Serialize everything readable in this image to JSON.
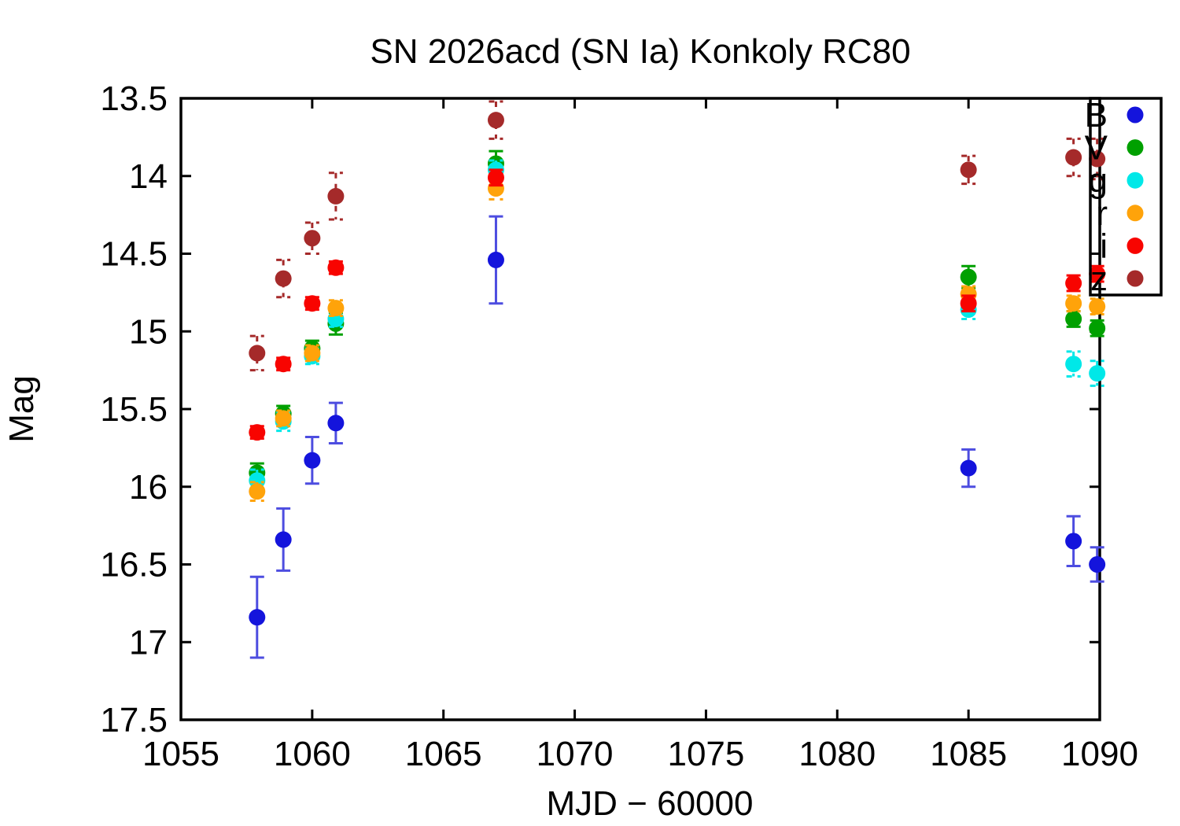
{
  "chart_data": {
    "type": "scatter",
    "title": "SN 2026acd (SN Ia) Konkoly RC80",
    "xlabel": "MJD − 60000",
    "ylabel": "Mag",
    "x_axis": {
      "min": 1055,
      "max": 1090,
      "tick_labels": [
        "1055",
        "1060",
        "1065",
        "1070",
        "1075",
        "1080",
        "1085",
        "1090"
      ],
      "tick_values": [
        1055,
        1060,
        1065,
        1070,
        1075,
        1080,
        1085,
        1090
      ]
    },
    "y_axis": {
      "top_value": 13.5,
      "bottom_value": 17.5,
      "inverted_magnitude_scale": true,
      "tick_labels": [
        "13.5",
        "14",
        "14.5",
        "15",
        "15.5",
        "16",
        "16.5",
        "17",
        "17.5"
      ],
      "tick_values": [
        13.5,
        14,
        14.5,
        15,
        15.5,
        16,
        16.5,
        17,
        17.5
      ]
    },
    "grid": false,
    "legend": {
      "position": "top-right",
      "entries": [
        "B",
        "V",
        "g",
        "r",
        "i",
        "z"
      ]
    },
    "epochs_mjd_minus_60000": [
      1057.9,
      1058.9,
      1060.0,
      1060.9,
      1067.0,
      1085.0,
      1089.0,
      1089.9
    ],
    "series": [
      {
        "name": "B",
        "color": "#1414dc",
        "err_color": "#4d4de0",
        "dashed_error_bars": false,
        "points": [
          {
            "x": 1057.9,
            "mag": 16.84,
            "err": 0.26
          },
          {
            "x": 1058.9,
            "mag": 16.34,
            "err": 0.2
          },
          {
            "x": 1060.0,
            "mag": 15.83,
            "err": 0.15
          },
          {
            "x": 1060.9,
            "mag": 15.59,
            "err": 0.13
          },
          {
            "x": 1067.0,
            "mag": 14.54,
            "err": 0.28
          },
          {
            "x": 1085.0,
            "mag": 15.88,
            "err": 0.12
          },
          {
            "x": 1089.0,
            "mag": 16.35,
            "err": 0.16
          },
          {
            "x": 1089.9,
            "mag": 16.5,
            "err": 0.11
          }
        ]
      },
      {
        "name": "V",
        "color": "#00a000",
        "err_color": "#00a000",
        "dashed_error_bars": false,
        "points": [
          {
            "x": 1057.9,
            "mag": 15.91,
            "err": 0.06
          },
          {
            "x": 1058.9,
            "mag": 15.53,
            "err": 0.05
          },
          {
            "x": 1060.0,
            "mag": 15.11,
            "err": 0.05
          },
          {
            "x": 1060.9,
            "mag": 14.95,
            "err": 0.07
          },
          {
            "x": 1067.0,
            "mag": 13.92,
            "err": 0.08
          },
          {
            "x": 1085.0,
            "mag": 14.65,
            "err": 0.07
          },
          {
            "x": 1089.0,
            "mag": 14.92,
            "err": 0.05
          },
          {
            "x": 1089.9,
            "mag": 14.98,
            "err": 0.05
          }
        ]
      },
      {
        "name": "g",
        "color": "#00e8e8",
        "err_color": "#00e8e8",
        "dashed_error_bars": true,
        "points": [
          {
            "x": 1057.9,
            "mag": 15.96,
            "err": 0.07
          },
          {
            "x": 1058.9,
            "mag": 15.58,
            "err": 0.06
          },
          {
            "x": 1060.0,
            "mag": 15.16,
            "err": 0.05
          },
          {
            "x": 1060.9,
            "mag": 14.92,
            "err": 0.05
          },
          {
            "x": 1067.0,
            "mag": 13.96,
            "err": 0.06
          },
          {
            "x": 1085.0,
            "mag": 14.86,
            "err": 0.06
          },
          {
            "x": 1089.0,
            "mag": 15.21,
            "err": 0.08
          },
          {
            "x": 1089.9,
            "mag": 15.27,
            "err": 0.08
          }
        ]
      },
      {
        "name": "r",
        "color": "#ffa30a",
        "err_color": "#ffa30a",
        "dashed_error_bars": true,
        "points": [
          {
            "x": 1057.9,
            "mag": 16.03,
            "err": 0.06
          },
          {
            "x": 1058.9,
            "mag": 15.56,
            "err": 0.05
          },
          {
            "x": 1060.0,
            "mag": 15.14,
            "err": 0.05
          },
          {
            "x": 1060.9,
            "mag": 14.85,
            "err": 0.05
          },
          {
            "x": 1067.0,
            "mag": 14.08,
            "err": 0.07
          },
          {
            "x": 1085.0,
            "mag": 14.76,
            "err": 0.05
          },
          {
            "x": 1089.0,
            "mag": 14.82,
            "err": 0.05
          },
          {
            "x": 1089.9,
            "mag": 14.84,
            "err": 0.05
          }
        ]
      },
      {
        "name": "i",
        "color": "#f80400",
        "err_color": "#f80400",
        "dashed_error_bars": false,
        "points": [
          {
            "x": 1057.9,
            "mag": 15.65,
            "err": 0.04
          },
          {
            "x": 1058.9,
            "mag": 15.21,
            "err": 0.04
          },
          {
            "x": 1060.0,
            "mag": 14.82,
            "err": 0.04
          },
          {
            "x": 1060.9,
            "mag": 14.59,
            "err": 0.04
          },
          {
            "x": 1067.0,
            "mag": 14.01,
            "err": 0.05
          },
          {
            "x": 1085.0,
            "mag": 14.82,
            "err": 0.05
          },
          {
            "x": 1089.0,
            "mag": 14.69,
            "err": 0.05
          },
          {
            "x": 1089.9,
            "mag": 14.63,
            "err": 0.05
          }
        ]
      },
      {
        "name": "z",
        "color": "#a52a2a",
        "err_color": "#a52a2a",
        "dashed_error_bars": true,
        "points": [
          {
            "x": 1057.9,
            "mag": 15.14,
            "err": 0.11
          },
          {
            "x": 1058.9,
            "mag": 14.66,
            "err": 0.12
          },
          {
            "x": 1060.0,
            "mag": 14.4,
            "err": 0.1
          },
          {
            "x": 1060.9,
            "mag": 14.13,
            "err": 0.15
          },
          {
            "x": 1067.0,
            "mag": 13.64,
            "err": 0.12
          },
          {
            "x": 1085.0,
            "mag": 13.96,
            "err": 0.09
          },
          {
            "x": 1089.0,
            "mag": 13.88,
            "err": 0.12
          },
          {
            "x": 1089.9,
            "mag": 13.89,
            "err": 0.13
          }
        ]
      }
    ]
  }
}
